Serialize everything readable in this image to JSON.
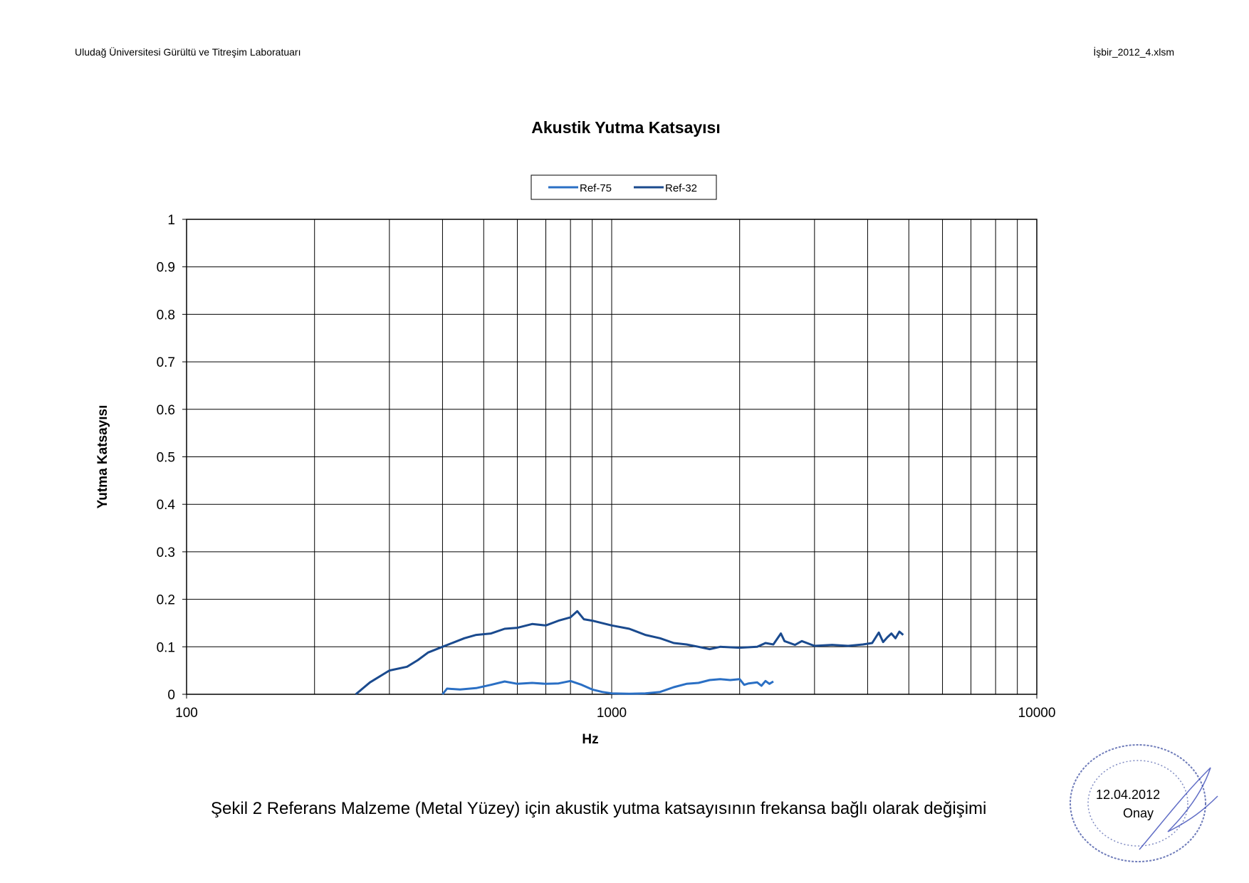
{
  "header": {
    "left": "Uludağ Üniversitesi Gürültü ve Titreşim Laboratuarı",
    "right": "İşbir_2012_4.xlsm"
  },
  "caption": "Şekil 2 Referans Malzeme (Metal Yüzey) için akustik yutma katsayısının frekansa bağlı olarak değişimi",
  "stamp": {
    "date": "12.04.2012",
    "label": "Onay"
  },
  "colors": {
    "ref75": "#2a6fc4",
    "ref32": "#1a4a8e",
    "grid": "#000000"
  },
  "chart_data": {
    "type": "line",
    "title": "Akustik Yutma Katsayısı",
    "xlabel": "Hz",
    "ylabel": "Yutma Katsayısı",
    "xscale": "log",
    "xlim": [
      100,
      10000
    ],
    "ylim": [
      0,
      1
    ],
    "grid": true,
    "legend_position": "top-center",
    "x_tick_labels": [
      "100",
      "1000",
      "10000"
    ],
    "y_tick_labels": [
      "0",
      "0.1",
      "0.2",
      "0.3",
      "0.4",
      "0.5",
      "0.6",
      "0.7",
      "0.8",
      "0.9",
      "1"
    ],
    "series": [
      {
        "name": "Ref-75",
        "color": "#2a6fc4",
        "points": [
          [
            400,
            0.0
          ],
          [
            410,
            0.012
          ],
          [
            440,
            0.01
          ],
          [
            480,
            0.013
          ],
          [
            520,
            0.02
          ],
          [
            560,
            0.027
          ],
          [
            600,
            0.022
          ],
          [
            650,
            0.024
          ],
          [
            700,
            0.022
          ],
          [
            750,
            0.023
          ],
          [
            800,
            0.028
          ],
          [
            850,
            0.02
          ],
          [
            900,
            0.01
          ],
          [
            950,
            0.005
          ],
          [
            1000,
            0.002
          ],
          [
            1100,
            0.001
          ],
          [
            1200,
            0.002
          ],
          [
            1300,
            0.005
          ],
          [
            1400,
            0.015
          ],
          [
            1500,
            0.022
          ],
          [
            1600,
            0.024
          ],
          [
            1700,
            0.03
          ],
          [
            1800,
            0.032
          ],
          [
            1900,
            0.03
          ],
          [
            2000,
            0.032
          ],
          [
            2050,
            0.02
          ],
          [
            2100,
            0.023
          ],
          [
            2200,
            0.025
          ],
          [
            2250,
            0.018
          ],
          [
            2300,
            0.028
          ],
          [
            2350,
            0.022
          ],
          [
            2400,
            0.027
          ]
        ]
      },
      {
        "name": "Ref-32",
        "color": "#1a4a8e",
        "points": [
          [
            250,
            0.0
          ],
          [
            270,
            0.025
          ],
          [
            300,
            0.05
          ],
          [
            330,
            0.058
          ],
          [
            350,
            0.072
          ],
          [
            370,
            0.088
          ],
          [
            400,
            0.1
          ],
          [
            450,
            0.118
          ],
          [
            480,
            0.125
          ],
          [
            520,
            0.128
          ],
          [
            560,
            0.138
          ],
          [
            600,
            0.14
          ],
          [
            650,
            0.148
          ],
          [
            700,
            0.145
          ],
          [
            750,
            0.155
          ],
          [
            800,
            0.162
          ],
          [
            830,
            0.175
          ],
          [
            860,
            0.158
          ],
          [
            900,
            0.155
          ],
          [
            1000,
            0.145
          ],
          [
            1100,
            0.138
          ],
          [
            1200,
            0.125
          ],
          [
            1300,
            0.118
          ],
          [
            1400,
            0.108
          ],
          [
            1500,
            0.105
          ],
          [
            1600,
            0.1
          ],
          [
            1700,
            0.095
          ],
          [
            1800,
            0.1
          ],
          [
            2000,
            0.098
          ],
          [
            2200,
            0.1
          ],
          [
            2300,
            0.108
          ],
          [
            2400,
            0.105
          ],
          [
            2500,
            0.128
          ],
          [
            2550,
            0.112
          ],
          [
            2700,
            0.104
          ],
          [
            2800,
            0.112
          ],
          [
            3000,
            0.102
          ],
          [
            3300,
            0.104
          ],
          [
            3600,
            0.102
          ],
          [
            3900,
            0.105
          ],
          [
            4100,
            0.108
          ],
          [
            4250,
            0.13
          ],
          [
            4350,
            0.11
          ],
          [
            4450,
            0.12
          ],
          [
            4550,
            0.128
          ],
          [
            4650,
            0.118
          ],
          [
            4750,
            0.132
          ],
          [
            4850,
            0.125
          ]
        ]
      }
    ]
  }
}
